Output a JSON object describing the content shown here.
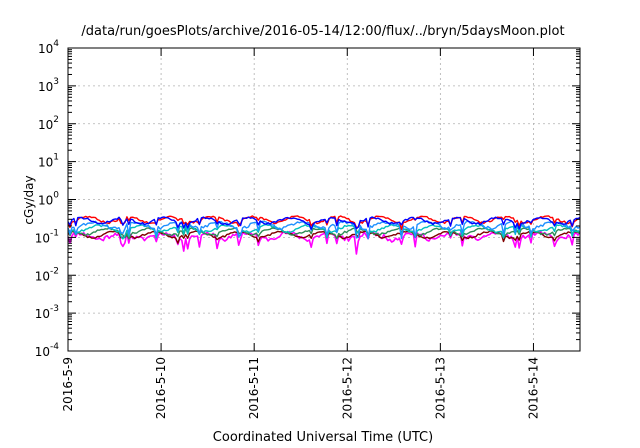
{
  "chart_data": {
    "type": "line",
    "title": "/data/run/goesPlots/archive/2016-05-14/12:00/flux/../bryn/5daysMoon.plot",
    "xlabel": "Coordinated Universal Time (UTC)",
    "ylabel": "cGy/day",
    "y_scale": "log",
    "ylim": [
      0.0001,
      10000
    ],
    "y_ticks": [
      {
        "base": "10",
        "exp": "-4"
      },
      {
        "base": "10",
        "exp": "-3"
      },
      {
        "base": "10",
        "exp": "-2"
      },
      {
        "base": "10",
        "exp": "-1"
      },
      {
        "base": "10",
        "exp": "0"
      },
      {
        "base": "10",
        "exp": "1"
      },
      {
        "base": "10",
        "exp": "2"
      },
      {
        "base": "10",
        "exp": "3"
      },
      {
        "base": "10",
        "exp": "4"
      }
    ],
    "xlim": [
      "2016-05-09",
      "2016-05-14T12:00"
    ],
    "x_ticks": [
      "2016-5-9",
      "2016-5-10",
      "2016-5-11",
      "2016-5-12",
      "2016-5-13",
      "2016-5-14"
    ],
    "grid": true,
    "x_samples_per_series": 262,
    "series": [
      {
        "color": "#ff00ff",
        "base": 0.11,
        "dip_depth": 0.45,
        "noise": 0.14,
        "seed": 11
      },
      {
        "color": "#800000",
        "base": 0.12,
        "dip_depth": 0.2,
        "noise": 0.05,
        "seed": 23
      },
      {
        "color": "#2e8b57",
        "base": 0.145,
        "dip_depth": 0.22,
        "noise": 0.06,
        "seed": 37
      },
      {
        "color": "#00bfbf",
        "base": 0.175,
        "dip_depth": 0.3,
        "noise": 0.07,
        "seed": 41
      },
      {
        "color": "#1e90ff",
        "base": 0.215,
        "dip_depth": 0.4,
        "noise": 0.09,
        "seed": 53
      },
      {
        "color": "#ff0000",
        "base": 0.3,
        "dip_depth": 0.25,
        "noise": 0.06,
        "seed": 67
      },
      {
        "color": "#0000ff",
        "base": 0.28,
        "dip_depth": 0.3,
        "noise": 0.06,
        "seed": 71
      }
    ]
  }
}
